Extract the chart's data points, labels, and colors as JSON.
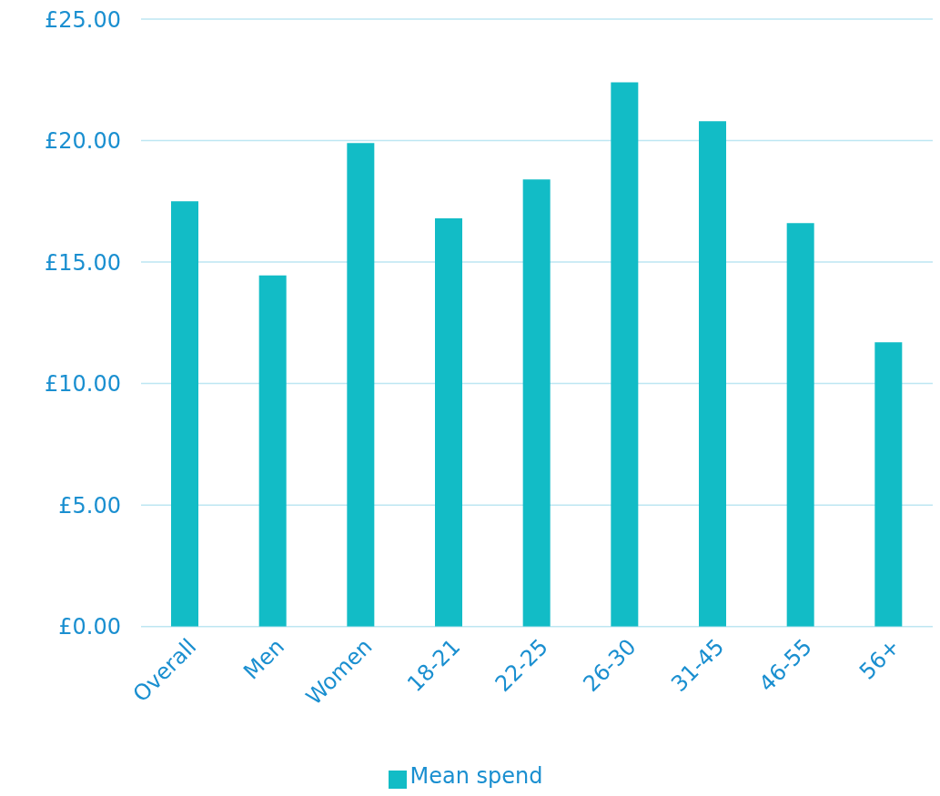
{
  "chart_data": {
    "type": "bar",
    "categories": [
      "Overall",
      "Men",
      "Women",
      "18-21",
      "22-25",
      "26-30",
      "31-45",
      "46-55",
      "56+"
    ],
    "series": [
      {
        "name": "Mean spend",
        "color": "#12bcc6",
        "values": [
          17.5,
          14.45,
          19.9,
          16.8,
          18.4,
          22.4,
          20.8,
          16.6,
          11.7
        ]
      }
    ],
    "ylim": [
      0,
      25
    ],
    "yticks": [
      {
        "value": 0,
        "label": "£0.00"
      },
      {
        "value": 5,
        "label": "£5.00"
      },
      {
        "value": 10,
        "label": "£10.00"
      },
      {
        "value": 15,
        "label": "£15.00"
      },
      {
        "value": 20,
        "label": "£20.00"
      },
      {
        "value": 25,
        "label": "£25.00"
      }
    ],
    "grid": "y",
    "legend": "bottom"
  }
}
